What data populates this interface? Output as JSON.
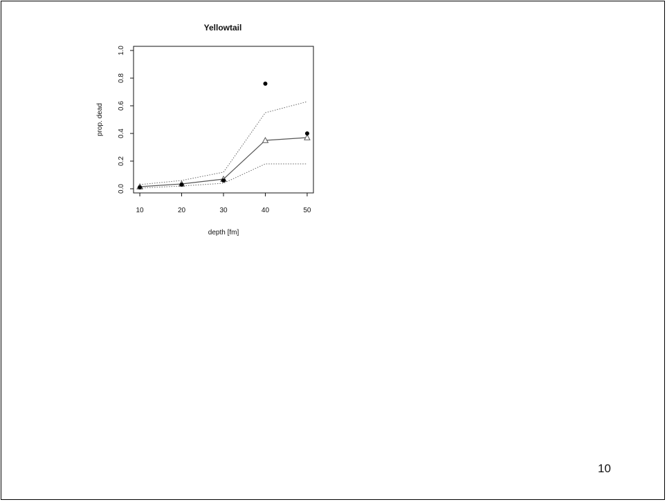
{
  "slide": {
    "page_number": "10"
  },
  "chart_data": {
    "type": "line",
    "title": "Yellowtail",
    "xlabel": "depth [fm]",
    "ylabel": "prop. dead",
    "x": [
      10,
      20,
      30,
      40,
      50
    ],
    "xlim": [
      8.5,
      51.5
    ],
    "ylim": [
      -0.03,
      1.03
    ],
    "x_ticks": [
      10,
      20,
      30,
      40,
      50
    ],
    "y_ticks": [
      "0.0",
      "0.2",
      "0.4",
      "0.6",
      "0.8",
      "1.0"
    ],
    "grid": false,
    "observed": {
      "marker": "filled-circle",
      "values": [
        0.01,
        0.03,
        0.06,
        0.76,
        0.4
      ]
    },
    "fitted": {
      "marker": "open-triangle",
      "line": "solid",
      "values": [
        0.015,
        0.035,
        0.07,
        0.35,
        0.37
      ]
    },
    "upper_bound": {
      "line": "dotted",
      "values": [
        0.03,
        0.06,
        0.12,
        0.55,
        0.63
      ]
    },
    "lower_bound": {
      "line": "dotted",
      "values": [
        0.005,
        0.02,
        0.04,
        0.18,
        0.18
      ]
    },
    "colors": {
      "axis": "#111111",
      "fitted": "#555555",
      "bounds": "#666666",
      "points": "#000000"
    }
  }
}
